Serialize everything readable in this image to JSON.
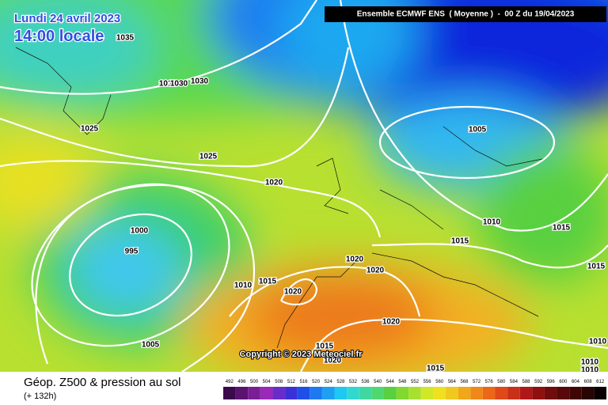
{
  "header": {
    "date": "Lundi 24 avril 2023",
    "time": "14:00 locale",
    "run": "Ensemble ECMWF ENS  ( Moyenne )  -  00 Z du 19/04/2023"
  },
  "isobar_labels": [
    "1035",
    "1010",
    "1030",
    "1030",
    "1025",
    "1025",
    "1020",
    "1005",
    "1000",
    "995",
    "1010",
    "1015",
    "1015",
    "1015",
    "1020",
    "1020",
    "1010",
    "1015",
    "1020",
    "1020",
    "1005",
    "1015",
    "1020",
    "1015",
    "1010",
    "1010",
    "1010"
  ],
  "footer": {
    "title": "Géop. Z500 & pression au sol",
    "lead": "(+ 132h)",
    "copyright": "Copyright © 2023 Meteociel.fr"
  },
  "scale": [
    492,
    496,
    500,
    504,
    508,
    512,
    516,
    520,
    524,
    528,
    532,
    536,
    540,
    544,
    548,
    552,
    556,
    560,
    564,
    568,
    572,
    576,
    580,
    584,
    588,
    592,
    596,
    600,
    604,
    608,
    612
  ]
}
